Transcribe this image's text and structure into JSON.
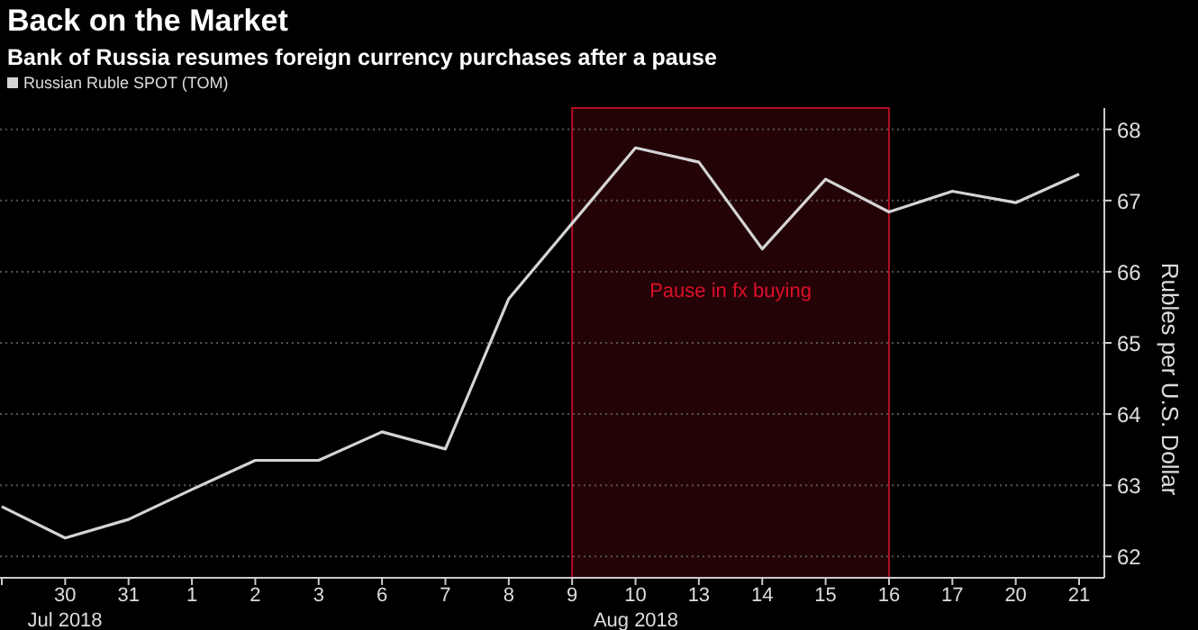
{
  "chart_data": {
    "type": "line",
    "title": "Back on the Market",
    "subtitle": "Bank of Russia resumes foreign currency purchases after a pause",
    "ylabel": "Rubles per U.S. Dollar",
    "categories": [
      null,
      "30",
      "31",
      "1",
      "2",
      "3",
      "6",
      "7",
      "8",
      "9",
      "10",
      "13",
      "14",
      "15",
      "16",
      "17",
      "20",
      "21"
    ],
    "series": [
      {
        "name": "Russian Ruble SPOT (TOM)",
        "color": "#d4d4d4",
        "values": [
          62.7,
          62.26,
          62.52,
          62.94,
          63.35,
          63.35,
          63.75,
          63.51,
          65.62,
          66.68,
          67.74,
          67.54,
          66.32,
          67.3,
          66.84,
          67.13,
          66.97,
          67.37
        ]
      }
    ],
    "ylim": [
      61.7,
      68.3
    ],
    "yticks": [
      62,
      63,
      64,
      65,
      66,
      67,
      68
    ],
    "bands": [
      {
        "axis": "x",
        "from": "9",
        "to": "16",
        "label": "Pause in fx buying",
        "color": "#e0102a"
      }
    ],
    "annotations": [
      "Jul 2018",
      "Aug 2018"
    ],
    "grid": "y",
    "legend": "top left",
    "marker": "none",
    "line_style": "solid"
  }
}
